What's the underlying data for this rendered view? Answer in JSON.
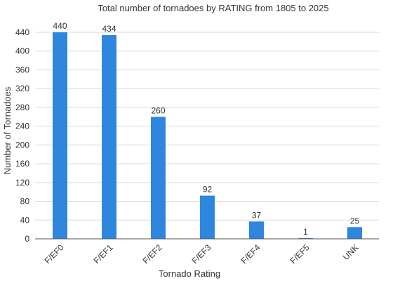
{
  "chart_data": {
    "type": "bar",
    "title": "Total number of tornadoes by RATING from 1805 to 2025",
    "xlabel": "Tornado Rating",
    "ylabel": "Number of Tornadoes",
    "categories": [
      "F/EF0",
      "F/EF1",
      "F/EF2",
      "F/EF3",
      "F/EF4",
      "F/EF5",
      "UNK"
    ],
    "values": [
      440,
      434,
      260,
      92,
      37,
      1,
      25
    ],
    "ylim": [
      0,
      440
    ],
    "yticks": [
      0,
      40,
      80,
      120,
      160,
      200,
      240,
      280,
      320,
      360,
      400,
      440
    ],
    "grid": true,
    "legend": "none",
    "bar_color": "#2e86de"
  }
}
